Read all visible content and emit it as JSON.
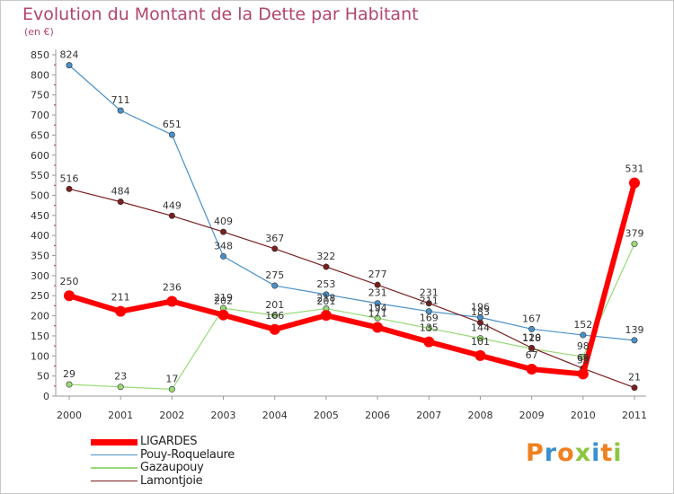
{
  "title": "Evolution du Montant de la Dette par Habitant",
  "unit": "(en €)",
  "logo": {
    "text": "Proxiti",
    "colors": [
      "#f08020",
      "#3a8fd0",
      "#f08020",
      "#8cc63f",
      "#3a8fd0",
      "#f08020",
      "#8cc63f"
    ]
  },
  "chart_data": {
    "type": "line",
    "x": [
      "2000",
      "2001",
      "2002",
      "2003",
      "2004",
      "2005",
      "2006",
      "2007",
      "2008",
      "2009",
      "2010",
      "2011"
    ],
    "ylim": [
      0,
      850
    ],
    "yticks": [
      "0",
      "50",
      "100",
      "150",
      "200",
      "250",
      "300",
      "350",
      "400",
      "450",
      "500",
      "550",
      "600",
      "650",
      "700",
      "750",
      "800",
      "850"
    ],
    "grid": false,
    "legend_position": "bottom-left",
    "series": [
      {
        "name": "Pouy-Roquelaure",
        "color": "#4a90c8",
        "width": 1.2,
        "values": [
          824,
          711,
          651,
          348,
          275,
          253,
          231,
          211,
          196,
          167,
          152,
          139
        ]
      },
      {
        "name": "Gazaupouy",
        "color": "#99d977",
        "width": 1.2,
        "values": [
          29,
          23,
          17,
          219,
          201,
          218,
          194,
          169,
          144,
          118,
          98,
          379
        ]
      },
      {
        "name": "Lamontjoie",
        "color": "#7a1f1f",
        "width": 1.2,
        "values": [
          516,
          484,
          449,
          409,
          367,
          322,
          277,
          231,
          183,
          120,
          69,
          21
        ]
      },
      {
        "name": "LIGARDES",
        "color": "#ff0000",
        "width": 6,
        "values": [
          250,
          211,
          236,
          202,
          166,
          201,
          171,
          135,
          101,
          67,
          55,
          531
        ]
      }
    ],
    "value_labels": [
      {
        "series": "Pouy-Roquelaure",
        "labels": [
          "824",
          "711",
          "651",
          "348",
          "275",
          "253",
          "231",
          "211",
          "196",
          "167",
          "152",
          "139"
        ]
      },
      {
        "series": "Gazaupouy",
        "labels": [
          "29",
          "23",
          "17",
          "219",
          "201",
          "218",
          "194",
          "169",
          "144",
          "118",
          "98",
          "379"
        ]
      },
      {
        "series": "Lamontjoie",
        "labels": [
          "516",
          "484",
          "449",
          "409",
          "367",
          "322",
          "277",
          "231",
          "183",
          "120",
          "69",
          "21"
        ]
      },
      {
        "series": "LIGARDES",
        "labels": [
          "250",
          "211",
          "236",
          "202",
          "166",
          "201",
          "171",
          "135",
          "101",
          "67",
          "55",
          "531"
        ]
      }
    ],
    "legend": [
      {
        "label": "LIGARDES",
        "color": "#ff0000"
      },
      {
        "label": "Pouy-Roquelaure",
        "color": "#4a90c8"
      },
      {
        "label": "Gazaupouy",
        "color": "#99d977"
      },
      {
        "label": "Lamontjoie",
        "color": "#7a1f1f"
      }
    ]
  }
}
